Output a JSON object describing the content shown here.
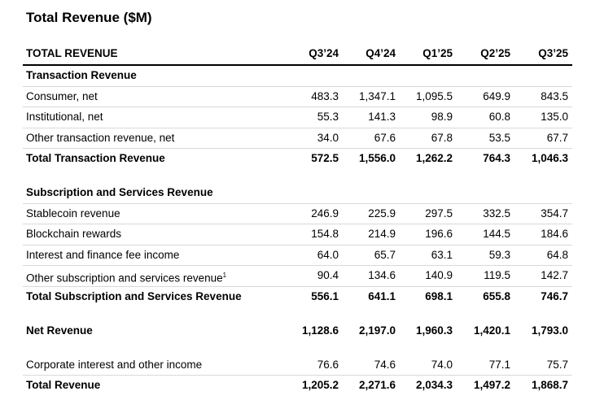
{
  "title": "Total Revenue ($M)",
  "table": {
    "header": [
      "TOTAL REVENUE",
      "Q3’24",
      "Q4’24",
      "Q1’25",
      "Q2’25",
      "Q3’25"
    ],
    "sections": [
      {
        "heading": "Transaction Revenue",
        "rows": [
          {
            "label": "Consumer, net",
            "values": [
              "483.3",
              "1,347.1",
              "1,095.5",
              "649.9",
              "843.5"
            ]
          },
          {
            "label": "Institutional, net",
            "values": [
              "55.3",
              "141.3",
              "98.9",
              "60.8",
              "135.0"
            ]
          },
          {
            "label": "Other transaction revenue, net",
            "values": [
              "34.0",
              "67.6",
              "67.8",
              "53.5",
              "67.7"
            ]
          }
        ],
        "total": {
          "label": "Total Transaction Revenue",
          "values": [
            "572.5",
            "1,556.0",
            "1,262.2",
            "764.3",
            "1,046.3"
          ]
        }
      },
      {
        "heading": "Subscription and Services Revenue",
        "rows": [
          {
            "label": "Stablecoin revenue",
            "values": [
              "246.9",
              "225.9",
              "297.5",
              "332.5",
              "354.7"
            ]
          },
          {
            "label": "Blockchain rewards",
            "values": [
              "154.8",
              "214.9",
              "196.6",
              "144.5",
              "184.6"
            ]
          },
          {
            "label": "Interest and finance fee income",
            "values": [
              "64.0",
              "65.7",
              "63.1",
              "59.3",
              "64.8"
            ]
          },
          {
            "label": "Other subscription and services revenue",
            "note": "1",
            "values": [
              "90.4",
              "134.6",
              "140.9",
              "119.5",
              "142.7"
            ]
          }
        ],
        "total": {
          "label": "Total Subscription and Services Revenue",
          "values": [
            "556.1",
            "641.1",
            "698.1",
            "655.8",
            "746.7"
          ]
        }
      },
      {
        "total": {
          "label": "Net Revenue",
          "values": [
            "1,128.6",
            "2,197.0",
            "1,960.3",
            "1,420.1",
            "1,793.0"
          ]
        }
      },
      {
        "rows": [
          {
            "label": "Corporate interest and other income",
            "values": [
              "76.6",
              "74.6",
              "74.0",
              "77.1",
              "75.7"
            ]
          }
        ],
        "total": {
          "label": "Total Revenue",
          "values": [
            "1,205.2",
            "2,271.6",
            "2,034.3",
            "1,497.2",
            "1,868.7"
          ]
        }
      }
    ]
  }
}
